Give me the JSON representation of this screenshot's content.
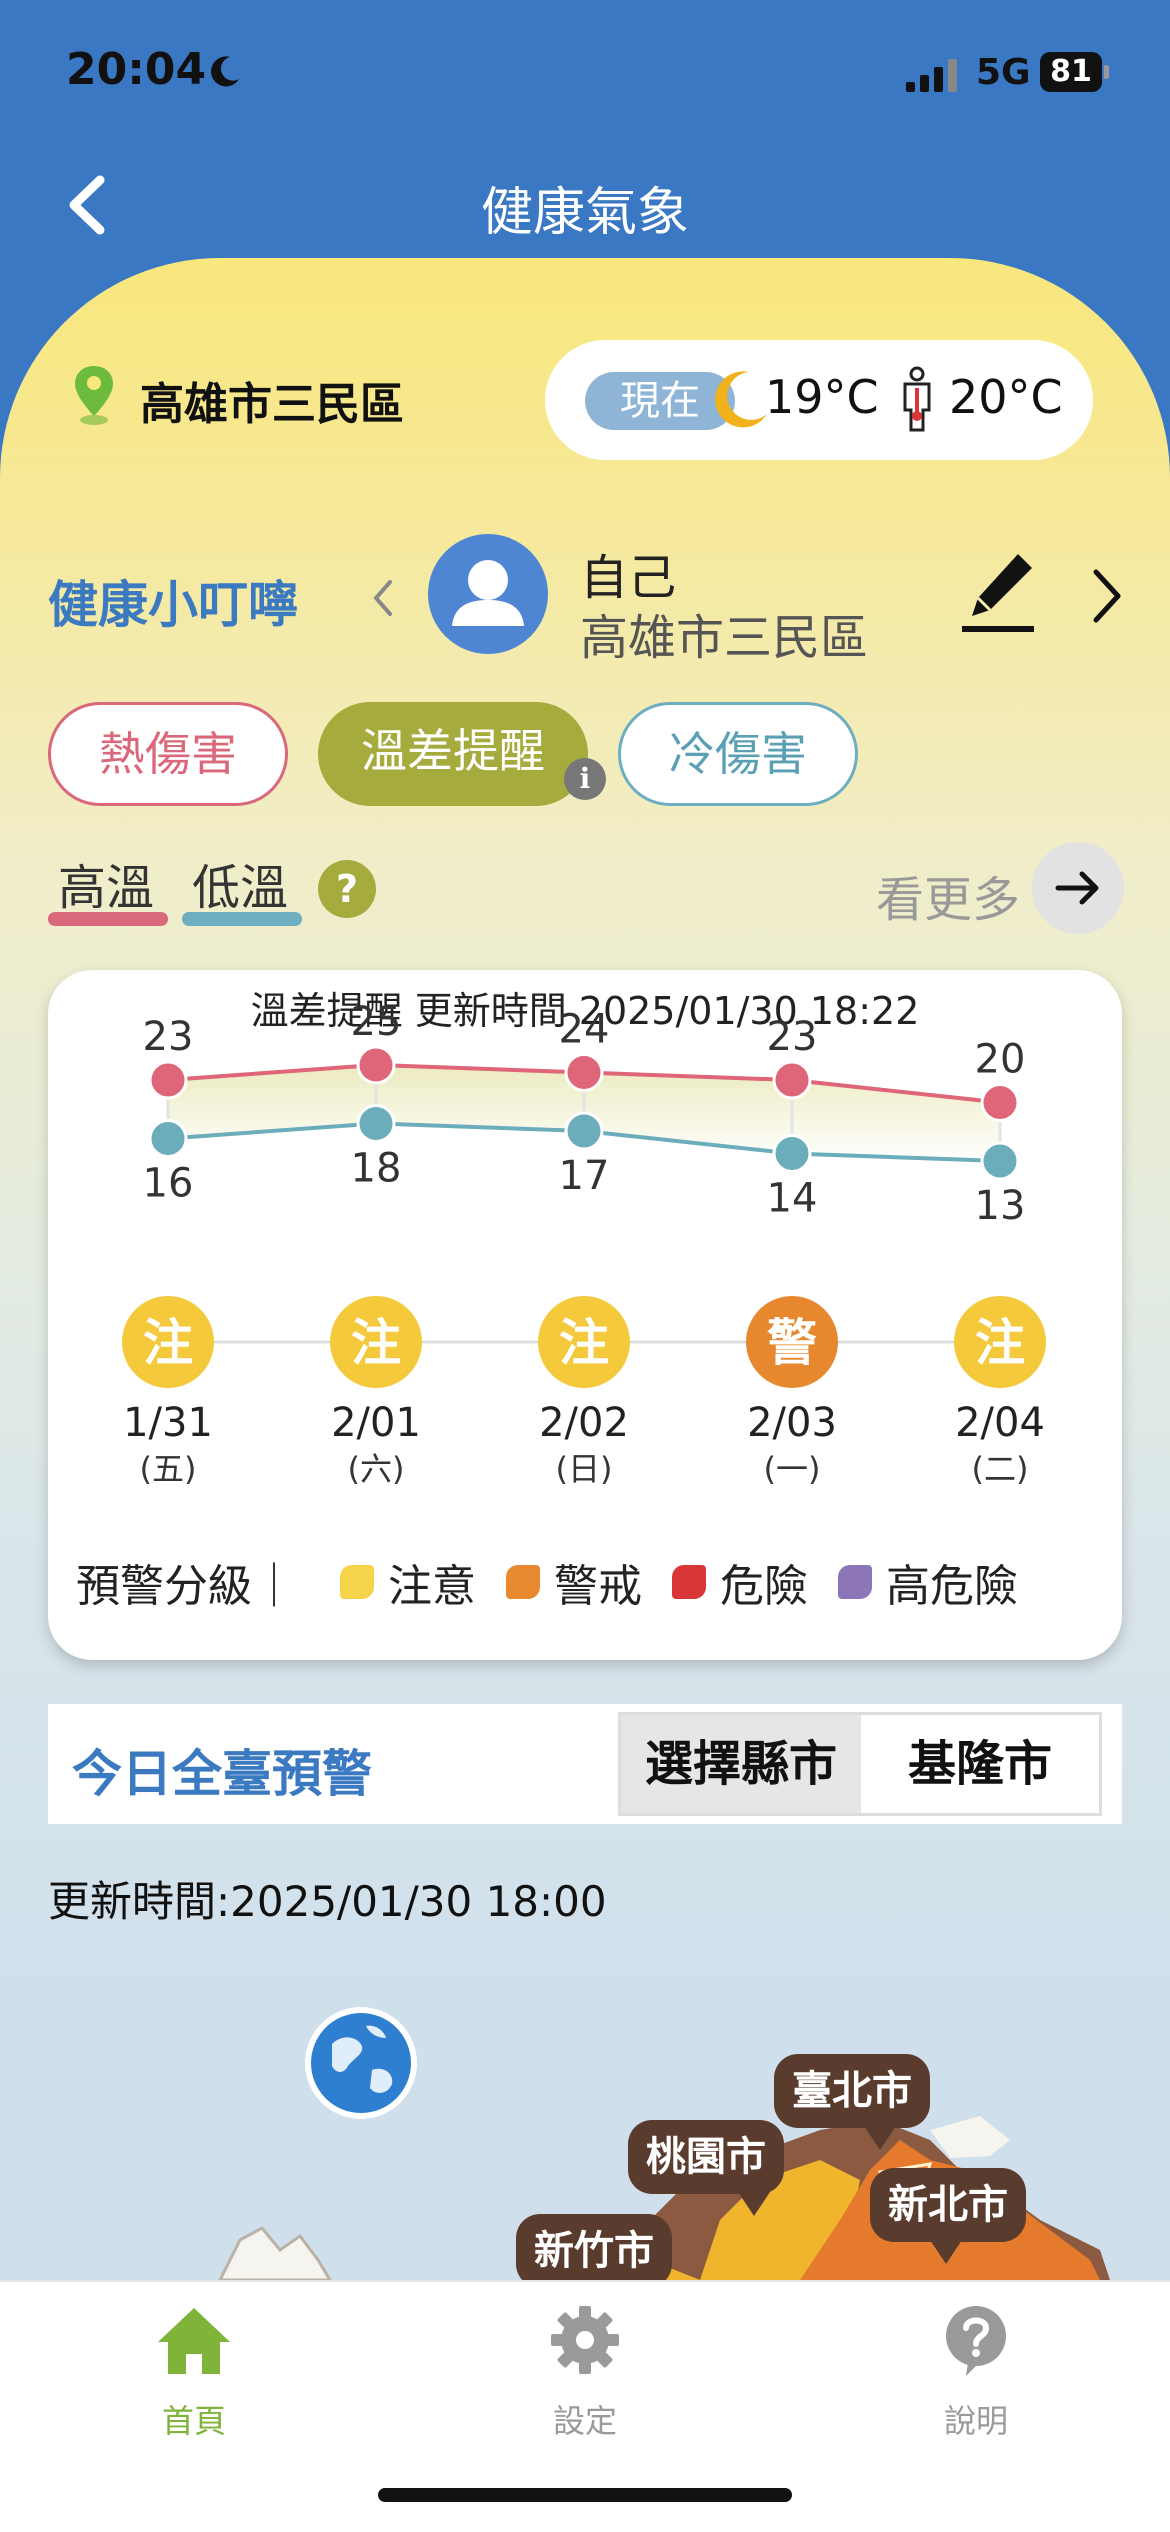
{
  "status_bar": {
    "time": "20:04",
    "network": "5G",
    "battery": "81"
  },
  "nav": {
    "title": "健康氣象"
  },
  "location": {
    "name": "高雄市三民區"
  },
  "now": {
    "label": "現在",
    "temp": "19°C",
    "feels_like": "20°C"
  },
  "reminder": {
    "title": "健康小叮嚀",
    "profile_name": "自己",
    "profile_location": "高雄市三民區"
  },
  "tags": {
    "heat": "熱傷害",
    "temp_diff": "溫差提醒",
    "cold": "冷傷害",
    "info": "i"
  },
  "legend": {
    "high": "高溫",
    "low": "低溫",
    "help": "?",
    "more": "看更多"
  },
  "chart_data": {
    "type": "line",
    "title": "溫差提醒 更新時間 2025/01/30 18:22",
    "categories": [
      "1/31",
      "2/01",
      "2/02",
      "2/03",
      "2/04"
    ],
    "weekdays": [
      "(五)",
      "(六)",
      "(日)",
      "(一)",
      "(二)"
    ],
    "series": [
      {
        "name": "高溫",
        "values": [
          23,
          25,
          24,
          23,
          20
        ],
        "color": "#df6578"
      },
      {
        "name": "低溫",
        "values": [
          16,
          18,
          17,
          14,
          13
        ],
        "color": "#6cadbc"
      }
    ],
    "levels": [
      "注",
      "注",
      "注",
      "警",
      "注"
    ],
    "level_colors": {
      "注": "#f5c93c",
      "警": "#e8882e"
    }
  },
  "level_legend": {
    "title": "預警分級｜",
    "items": [
      {
        "label": "注意",
        "color": "#f5d44a"
      },
      {
        "label": "警戒",
        "color": "#e8892f"
      },
      {
        "label": "危險",
        "color": "#d9363a"
      },
      {
        "label": "高危險",
        "color": "#8c76b8"
      }
    ]
  },
  "alert": {
    "title": "今日全臺預警",
    "select_label": "選擇縣市",
    "select_value": "基隆市",
    "update_time": "更新時間:2025/01/30 18:00"
  },
  "map": {
    "labels": [
      "臺北市",
      "桃園市",
      "新北市",
      "新竹市"
    ]
  },
  "tabs": [
    {
      "label": "首頁",
      "icon": "home-icon",
      "active": true
    },
    {
      "label": "設定",
      "icon": "gear-icon",
      "active": false
    },
    {
      "label": "說明",
      "icon": "help-icon",
      "active": false
    }
  ],
  "colors": {
    "accent_blue": "#3a78c3",
    "active_green": "#7fb33a",
    "inactive_gray": "#9a9a9a"
  }
}
